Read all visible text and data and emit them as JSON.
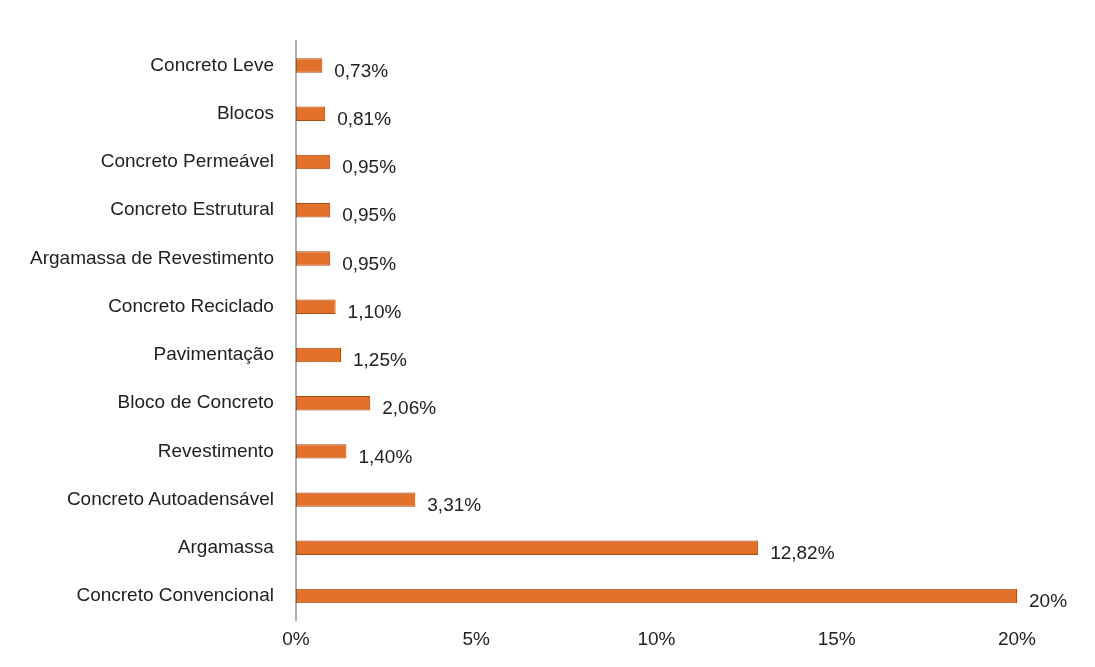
{
  "chart_data": {
    "type": "bar",
    "orientation": "horizontal",
    "categories": [
      "Concreto Leve",
      "Blocos",
      "Concreto Permeável",
      "Concreto Estrutural",
      "Argamassa de Revestimento",
      "Concreto Reciclado",
      "Pavimentação",
      "Bloco de Concreto",
      "Revestimento",
      "Concreto Autoadensável",
      "Argamassa",
      "Concreto Convencional"
    ],
    "values": [
      0.73,
      0.81,
      0.95,
      0.95,
      0.95,
      1.1,
      1.25,
      2.06,
      1.4,
      3.31,
      12.82,
      20
    ],
    "value_labels": [
      "0,73%",
      "0,81%",
      "0,95%",
      "0,95%",
      "0,95%",
      "1,10%",
      "1,25%",
      "2,06%",
      "1,40%",
      "3,31%",
      "12,82%",
      "20%"
    ],
    "color": "#e2712b",
    "xlim": [
      0,
      20
    ],
    "xticks": [
      {
        "value": 0,
        "label": "0%"
      },
      {
        "value": 5,
        "label": "5%"
      },
      {
        "value": 10,
        "label": "10%"
      },
      {
        "value": 15,
        "label": "15%"
      },
      {
        "value": 20,
        "label": "20%"
      }
    ],
    "grid": false,
    "legend": false
  }
}
